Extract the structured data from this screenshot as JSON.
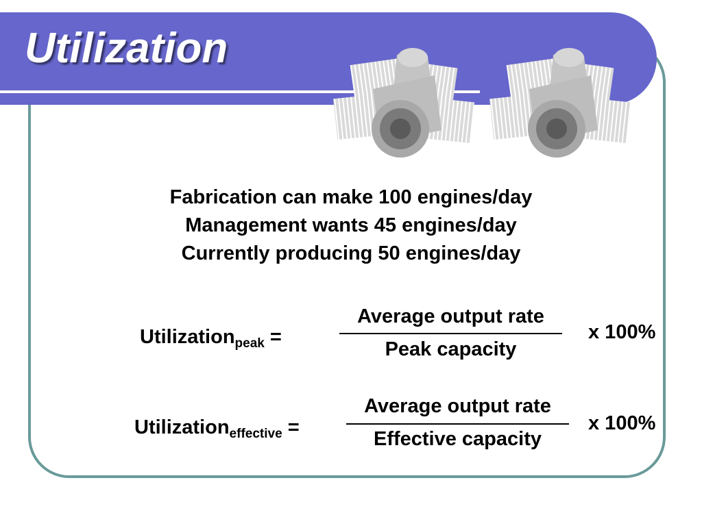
{
  "slide": {
    "title": "Utilization",
    "statements": [
      "Fabrication can make 100 engines/day",
      "Management wants 45 engines/day",
      "Currently producing 50 engines/day"
    ],
    "equations": [
      {
        "label": "Utilization",
        "subscript": "peak",
        "equals": "=",
        "numerator": "Average output rate",
        "denominator": "Peak capacity",
        "multiplier": "x 100%"
      },
      {
        "label": "Utilization",
        "subscript": "effective",
        "equals": "=",
        "numerator": "Average output rate",
        "denominator": "Effective capacity",
        "multiplier": "x 100%"
      }
    ],
    "decoration": "engine-illustration",
    "colors": {
      "banner": "#6666cc",
      "frame_border": "#6a9a9a",
      "title_text": "#ffffff",
      "body_text": "#000000"
    }
  }
}
